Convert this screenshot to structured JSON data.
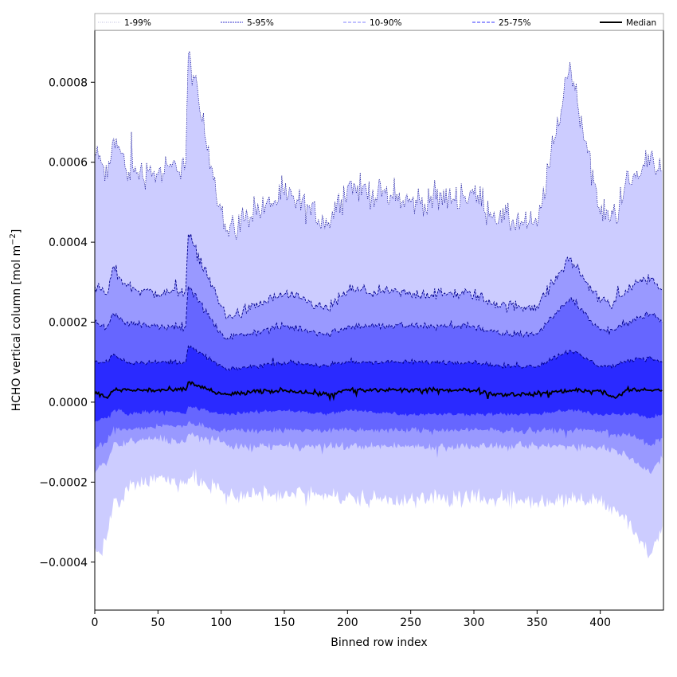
{
  "chart_data": {
    "type": "area",
    "xlabel": "Binned row index",
    "ylabel_main": "HCHO vertical column [mol m",
    "ylabel_sup": "−2",
    "ylabel_close": "]",
    "xlim": [
      0,
      450
    ],
    "ylim": [
      -0.00052,
      0.00093
    ],
    "x_ticks": [
      0,
      50,
      100,
      150,
      200,
      250,
      300,
      350,
      400
    ],
    "x_tick_labels": [
      "0",
      "50",
      "100",
      "150",
      "200",
      "250",
      "300",
      "350",
      "400"
    ],
    "y_ticks": [
      -0.0004,
      -0.0002,
      0.0,
      0.0002,
      0.0004,
      0.0006,
      0.0008
    ],
    "y_tick_labels": [
      "−0.0004",
      "−0.0002",
      "0.0000",
      "0.0002",
      "0.0004",
      "0.0006",
      "0.0008"
    ],
    "legend_position": "top (above plot, single row)",
    "legend": [
      {
        "label": "1-99%",
        "style": "dotted",
        "color": "#ccccff"
      },
      {
        "label": "5-95%",
        "style": "dotted",
        "color": "#3333cc"
      },
      {
        "label": "10-90%",
        "style": "dashed",
        "color": "#8080ff"
      },
      {
        "label": "25-75%",
        "style": "dashed",
        "color": "#3333ff"
      },
      {
        "label": "Median",
        "style": "solid",
        "color": "#000000"
      }
    ],
    "band_colors": {
      "p1_99": "#ccccff",
      "p5_95": "#9999ff",
      "p10_90": "#6666ff",
      "p25_75": "#2a2aff",
      "line": "#00008b",
      "median": "#000000"
    },
    "series_x_range": [
      0,
      449
    ],
    "series_anchor_x": [
      0,
      5,
      10,
      15,
      20,
      25,
      50,
      72,
      74,
      100,
      105,
      150,
      185,
      200,
      250,
      300,
      320,
      350,
      376,
      400,
      412,
      420,
      430,
      440,
      449
    ],
    "series": [
      {
        "name": "1-99% upper",
        "values": [
          0.00062,
          0.0006,
          0.00056,
          0.00066,
          0.00063,
          0.00058,
          0.00057,
          0.0006,
          0.00087,
          0.00048,
          0.00043,
          0.00052,
          0.00045,
          0.00054,
          0.0005,
          0.00052,
          0.00046,
          0.00044,
          0.00085,
          0.00047,
          0.00047,
          0.00055,
          0.00056,
          0.00062,
          0.00058
        ]
      },
      {
        "name": "5-95% upper",
        "values": [
          0.00029,
          0.00028,
          0.00027,
          0.00034,
          0.00031,
          0.00029,
          0.00027,
          0.00028,
          0.00042,
          0.00024,
          0.00021,
          0.00027,
          0.00023,
          0.00028,
          0.00027,
          0.00027,
          0.00024,
          0.00024,
          0.00036,
          0.00025,
          0.00025,
          0.00028,
          0.0003,
          0.00031,
          0.00028
        ]
      },
      {
        "name": "10-90% upper",
        "values": [
          0.0002,
          0.00019,
          0.00019,
          0.00022,
          0.00021,
          0.0002,
          0.00019,
          0.00019,
          0.00029,
          0.00017,
          0.00016,
          0.00019,
          0.00017,
          0.00019,
          0.00019,
          0.00019,
          0.00017,
          0.00017,
          0.00026,
          0.00018,
          0.00018,
          0.0002,
          0.00021,
          0.00022,
          0.0002
        ]
      },
      {
        "name": "25-75% upper",
        "values": [
          0.0001,
          0.0001,
          0.0001,
          0.00012,
          0.00011,
          0.0001,
          0.0001,
          0.0001,
          0.00014,
          9e-05,
          8e-05,
          0.0001,
          9e-05,
          0.0001,
          0.0001,
          0.0001,
          9e-05,
          9e-05,
          0.00013,
          9e-05,
          9e-05,
          0.0001,
          0.00011,
          0.00011,
          0.0001
        ]
      },
      {
        "name": "Median",
        "values": [
          2e-05,
          2e-05,
          1e-05,
          3e-05,
          3e-05,
          3e-05,
          3e-05,
          3e-05,
          5e-05,
          2e-05,
          2e-05,
          3e-05,
          2e-05,
          3e-05,
          3e-05,
          3e-05,
          2e-05,
          2e-05,
          3e-05,
          3e-05,
          1e-05,
          3e-05,
          3e-05,
          3e-05,
          3e-05
        ]
      },
      {
        "name": "25-75% lower",
        "values": [
          -5e-05,
          -4e-05,
          -4e-05,
          -2e-05,
          -2e-05,
          -3e-05,
          -2e-05,
          -3e-05,
          -1e-05,
          -3e-05,
          -3e-05,
          -2e-05,
          -3e-05,
          -2e-05,
          -3e-05,
          -3e-05,
          -3e-05,
          -3e-05,
          -2e-05,
          -3e-05,
          -3e-05,
          -3e-05,
          -3e-05,
          -4e-05,
          -3e-05
        ]
      },
      {
        "name": "10-90% lower",
        "values": [
          -0.00012,
          -0.0001,
          -0.0001,
          -6e-05,
          -7e-05,
          -7e-05,
          -6e-05,
          -6e-05,
          -5e-05,
          -7e-05,
          -7e-05,
          -7e-05,
          -7e-05,
          -7e-05,
          -7e-05,
          -7e-05,
          -7e-05,
          -7e-05,
          -7e-05,
          -7e-05,
          -8e-05,
          -8e-05,
          -9e-05,
          -0.00011,
          -9e-05
        ]
      },
      {
        "name": "5-95% lower",
        "values": [
          -0.00018,
          -0.00016,
          -0.00015,
          -0.0001,
          -0.00011,
          -0.0001,
          -9e-05,
          -0.0001,
          -8e-05,
          -0.0001,
          -0.00011,
          -0.00011,
          -0.00011,
          -0.00011,
          -0.00011,
          -0.00011,
          -0.00011,
          -0.00011,
          -0.00011,
          -0.00011,
          -0.00012,
          -0.00013,
          -0.00015,
          -0.00018,
          -0.00014
        ]
      },
      {
        "name": "1-99% lower",
        "values": [
          -0.00036,
          -0.00038,
          -0.00033,
          -0.00024,
          -0.00026,
          -0.00021,
          -0.00019,
          -0.0002,
          -0.00019,
          -0.00022,
          -0.00023,
          -0.00023,
          -0.00023,
          -0.00024,
          -0.00024,
          -0.00024,
          -0.00024,
          -0.00025,
          -0.00024,
          -0.00025,
          -0.00027,
          -0.00028,
          -0.00034,
          -0.00038,
          -0.00031
        ]
      }
    ]
  }
}
